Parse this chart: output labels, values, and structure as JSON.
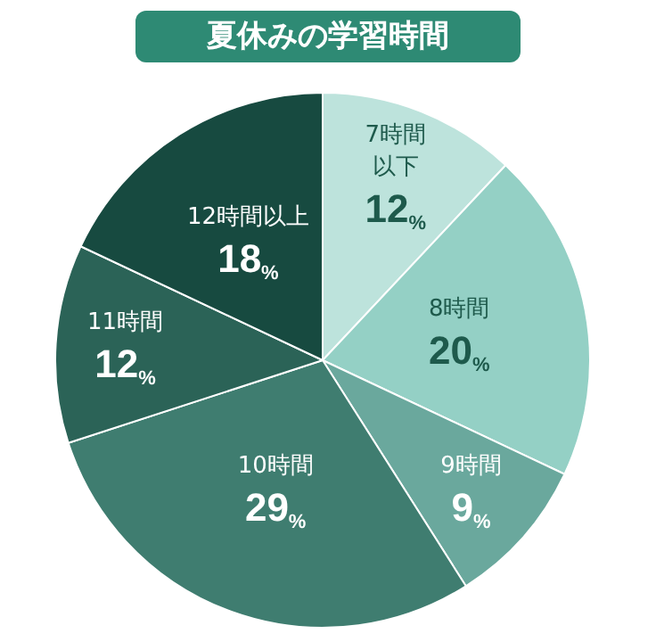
{
  "chart_data": {
    "type": "pie",
    "title": "夏休みの学習時間",
    "categories": [
      "7時間以下",
      "8時間",
      "9時間",
      "10時間",
      "11時間",
      "12時間以上"
    ],
    "values": [
      12,
      20,
      9,
      29,
      12,
      18
    ],
    "value_labels": [
      "12%",
      "20%",
      "9%",
      "29%",
      "12%",
      "18%"
    ],
    "colors": [
      "#bde3dc",
      "#94d0c5",
      "#6aa89d",
      "#3f7d70",
      "#2b6357",
      "#174a40"
    ]
  }
}
